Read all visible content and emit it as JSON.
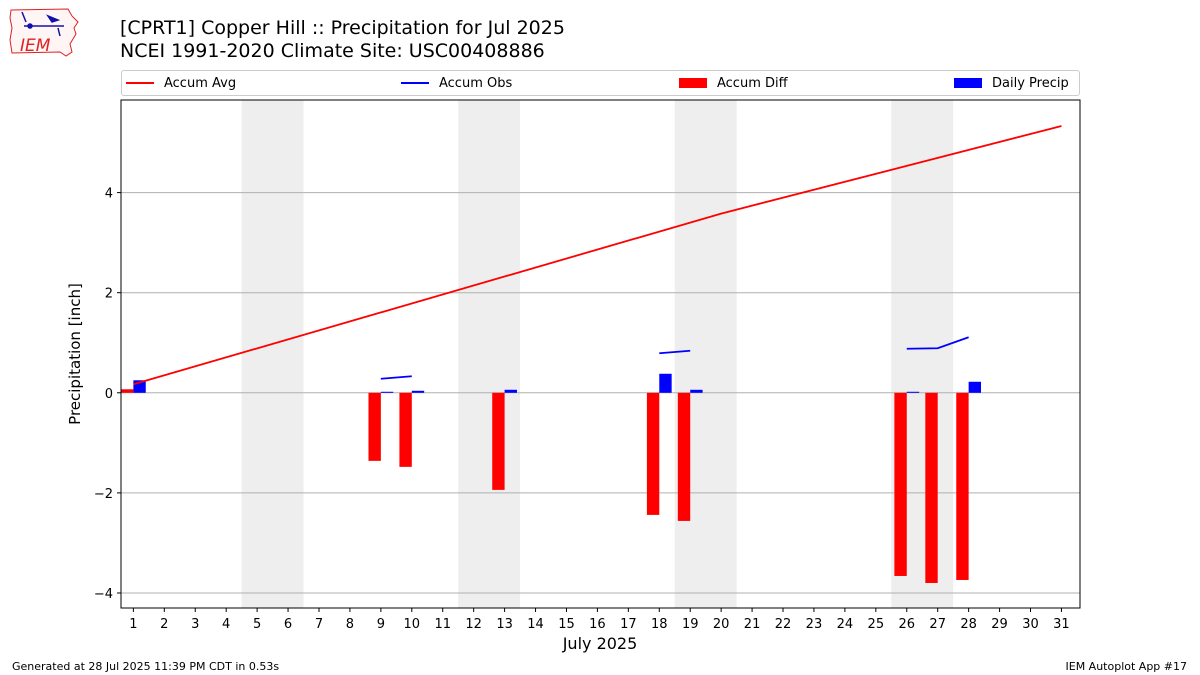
{
  "header": {
    "title_line1": "[CPRT1] Copper Hill :: Precipitation for Jul 2025",
    "title_line2": "NCEI 1991-2020 Climate Site: USC00408886"
  },
  "logo": {
    "text": "IEM"
  },
  "footer": {
    "left": "Generated at 28 Jul 2025 11:39 PM CDT in 0.53s",
    "right": "IEM Autoplot App #17"
  },
  "colors": {
    "avg": "#ff0000",
    "obs": "#0000ff",
    "diff": "#ff0000",
    "daily": "#0000ff",
    "weekend": "#eeeeee"
  },
  "chart_data": {
    "type": "bar",
    "xlabel": "July 2025",
    "ylabel": "Precipitation [inch]",
    "xlim": [
      0.6,
      31.6
    ],
    "ylim": [
      -4.3,
      5.85
    ],
    "yticks": [
      -4,
      -2,
      0,
      2,
      4
    ],
    "ytick_labels": [
      "−4",
      "−2",
      "0",
      "2",
      "4"
    ],
    "xticks": [
      1,
      2,
      3,
      4,
      5,
      6,
      7,
      8,
      9,
      10,
      11,
      12,
      13,
      14,
      15,
      16,
      17,
      18,
      19,
      20,
      21,
      22,
      23,
      24,
      25,
      26,
      27,
      28,
      29,
      30,
      31
    ],
    "grid": true,
    "legend_placement": "top",
    "shaded_days": [
      [
        5,
        6
      ],
      [
        12,
        13
      ],
      [
        19,
        20
      ],
      [
        26,
        27
      ]
    ],
    "legend": [
      {
        "label": "Accum Avg",
        "kind": "line",
        "color": "#ff0000"
      },
      {
        "label": "Accum Obs",
        "kind": "line",
        "color": "#0000ff"
      },
      {
        "label": "Accum Diff",
        "kind": "bar",
        "color": "#ff0000"
      },
      {
        "label": "Daily Precip",
        "kind": "bar",
        "color": "#0000ff"
      }
    ],
    "series": [
      {
        "name": "Accum Avg",
        "type": "line",
        "x": [
          1,
          20,
          31
        ],
        "values": [
          0.17,
          3.58,
          5.33
        ]
      },
      {
        "name": "Accum Obs",
        "type": "line",
        "segments": [
          {
            "x": [
              9,
              10
            ],
            "values": [
              0.28,
              0.33
            ]
          },
          {
            "x": [
              18,
              19
            ],
            "values": [
              0.79,
              0.84
            ]
          },
          {
            "x": [
              26,
              27,
              28
            ],
            "values": [
              0.88,
              0.89,
              1.11
            ]
          }
        ]
      },
      {
        "name": "Accum Diff",
        "type": "bar",
        "x": [
          1,
          9,
          10,
          13,
          18,
          19,
          26,
          27,
          28
        ],
        "values": [
          0.07,
          -1.36,
          -1.48,
          -1.94,
          -2.44,
          -2.56,
          -3.66,
          -3.8,
          -3.74
        ]
      },
      {
        "name": "Daily Precip",
        "type": "bar",
        "x": [
          1,
          9,
          10,
          13,
          18,
          19,
          26,
          28
        ],
        "values": [
          0.25,
          0.02,
          0.04,
          0.06,
          0.38,
          0.06,
          0.02,
          0.22
        ]
      }
    ]
  }
}
